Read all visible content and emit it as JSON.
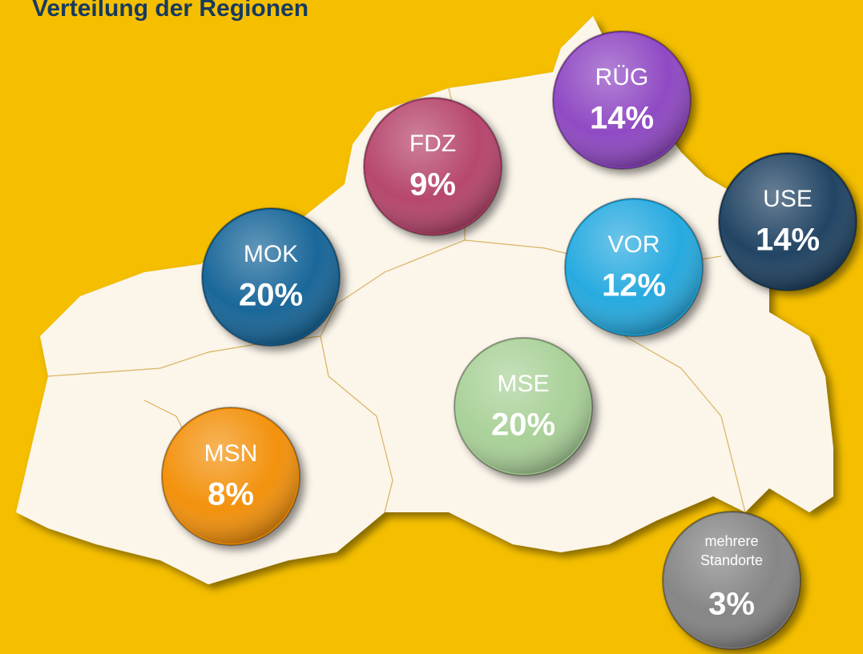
{
  "title": "Verteilung der Regionen",
  "regions": [
    {
      "name": [
        "RÜG"
      ],
      "share": "14%",
      "color": "#8a3fc0"
    },
    {
      "name": [
        "FDZ"
      ],
      "share": "9%",
      "color": "#b33c66"
    },
    {
      "name": [
        "USE"
      ],
      "share": "14%",
      "color": "#163b5c"
    },
    {
      "name": [
        "MOK"
      ],
      "share": "20%",
      "color": "#0e5e94"
    },
    {
      "name": [
        "VOR"
      ],
      "share": "12%",
      "color": "#1aa6de"
    },
    {
      "name": [
        "MSE"
      ],
      "share": "20%",
      "color": "#a6cf94"
    },
    {
      "name": [
        "MSN"
      ],
      "share": "8%",
      "color": "#f28c00"
    },
    {
      "name": [
        "mehrere",
        "Standorte"
      ],
      "share": "3%",
      "color": "#808080"
    }
  ]
}
